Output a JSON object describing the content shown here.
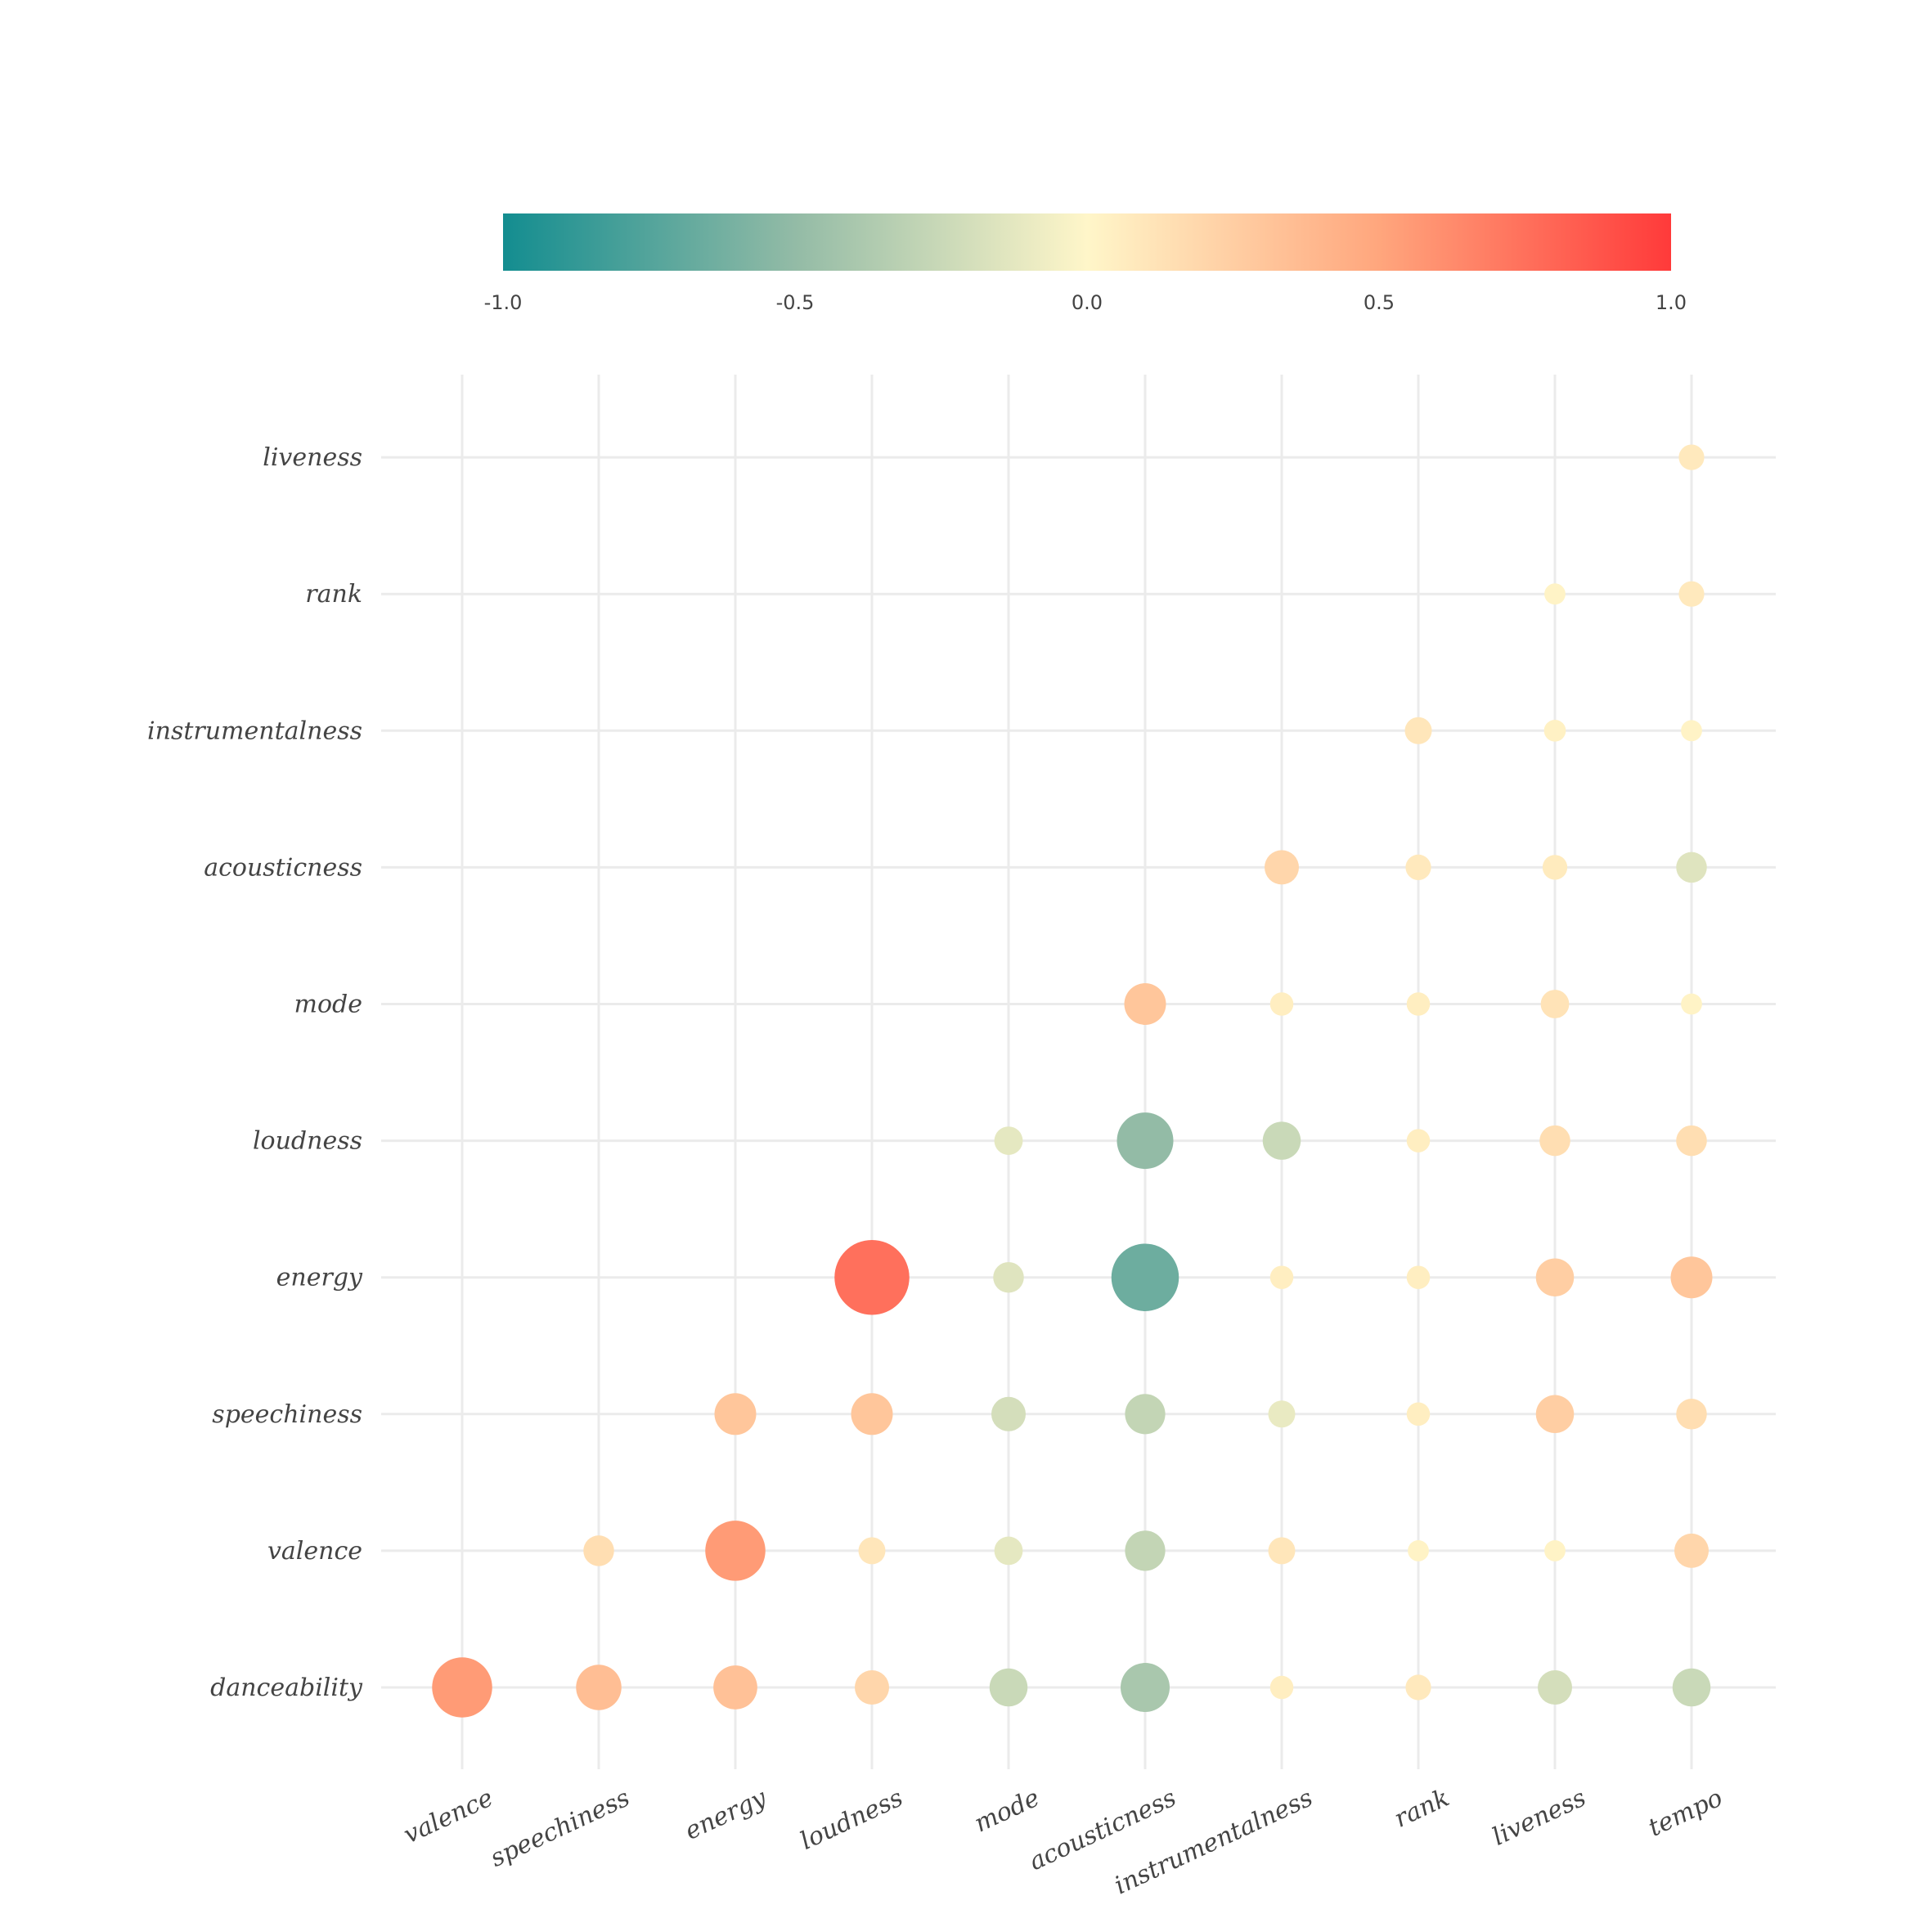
{
  "chart_data": {
    "type": "scatter",
    "subtype": "correlation-bubble-matrix",
    "title": "",
    "x_categories": [
      "valence",
      "speechiness",
      "energy",
      "loudness",
      "mode",
      "acousticness",
      "instrumentalness",
      "rank",
      "liveness",
      "tempo"
    ],
    "y_categories": [
      "danceability",
      "valence",
      "speechiness",
      "energy",
      "loudness",
      "mode",
      "acousticness",
      "instrumentalness",
      "rank",
      "liveness"
    ],
    "colorbar": {
      "range": [
        -1.0,
        1.0
      ],
      "tick_labels": [
        "-1.0",
        "-0.5",
        "0.0",
        "0.5",
        "1.0"
      ],
      "ticks": [
        -1.0,
        -0.5,
        0.0,
        0.5,
        1.0
      ],
      "colors": [
        "#138d90",
        "#93bba6",
        "#fff6c9",
        "#ffa67d",
        "#ff3a3a"
      ],
      "placement": "top"
    },
    "values": {
      "danceability": {
        "valence": 0.55,
        "speechiness": 0.35,
        "energy": 0.33,
        "loudness": 0.2,
        "mode": -0.25,
        "acousticness": -0.4,
        "instrumentalness": 0.05,
        "rank": 0.08,
        "liveness": -0.2,
        "tempo": -0.25
      },
      "valence": {
        "speechiness": 0.15,
        "energy": 0.55,
        "loudness": 0.1,
        "mode": -0.12,
        "acousticness": -0.28,
        "instrumentalness": 0.1,
        "rank": 0.02,
        "liveness": 0.02,
        "tempo": 0.2
      },
      "speechiness": {
        "energy": 0.3,
        "loudness": 0.3,
        "mode": -0.2,
        "acousticness": -0.28,
        "instrumentalness": -0.1,
        "rank": 0.05,
        "liveness": 0.25,
        "tempo": 0.15
      },
      "energy": {
        "loudness": 0.75,
        "mode": -0.15,
        "acousticness": -0.65,
        "instrumentalness": 0.05,
        "rank": 0.05,
        "liveness": 0.25,
        "tempo": 0.3
      },
      "loudness": {
        "mode": -0.12,
        "acousticness": -0.5,
        "instrumentalness": -0.25,
        "rank": 0.05,
        "liveness": 0.15,
        "tempo": 0.15
      },
      "mode": {
        "acousticness": 0.3,
        "instrumentalness": 0.05,
        "rank": 0.05,
        "liveness": 0.12,
        "tempo": 0.02
      },
      "acousticness": {
        "instrumentalness": 0.2,
        "rank": 0.08,
        "liveness": 0.07,
        "tempo": -0.15
      },
      "instrumentalness": {
        "rank": 0.1,
        "liveness": 0.03,
        "tempo": 0.02
      },
      "rank": {
        "liveness": 0.02,
        "tempo": 0.08
      },
      "liveness": {
        "tempo": 0.08
      }
    },
    "grid": true,
    "legend": "top"
  }
}
